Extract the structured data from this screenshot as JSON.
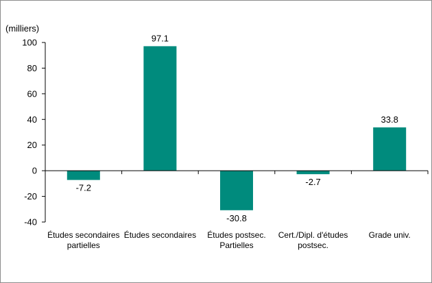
{
  "chart_data": {
    "type": "bar",
    "title": "",
    "unit_label": "(milliers)",
    "xlabel": "",
    "ylabel": "",
    "categories": [
      [
        "Études secondaires",
        "partielles"
      ],
      [
        "Études secondaires"
      ],
      [
        "Études postsec.",
        "Partielles"
      ],
      [
        "Cert./Dipl. d'études",
        "postsec."
      ],
      [
        "Grade univ."
      ]
    ],
    "values": [
      -7.2,
      97.1,
      -30.8,
      -2.7,
      33.8
    ],
    "value_labels": [
      "-7.2",
      "97.1",
      "-30.8",
      "-2.7",
      "33.8"
    ],
    "ylim": [
      -40,
      100
    ],
    "yticks": [
      100,
      80,
      60,
      40,
      20,
      0,
      -20,
      -40
    ],
    "bar_color": "#008b7d",
    "grid": false,
    "legend": "none"
  }
}
